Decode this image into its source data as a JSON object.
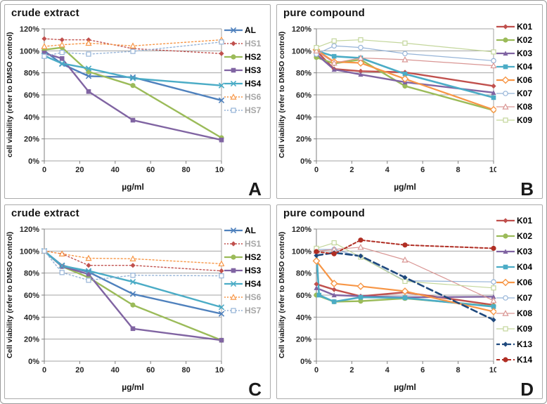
{
  "figure": {
    "background": "#FFFFFF",
    "panel_border_color": "#ABABAB",
    "gridline_color": "#A3A3A3",
    "axis_color": "#7F7F7F",
    "tick_label_color": "#262626",
    "legend_gray_label_color": "#A6A6A6"
  },
  "chart_data": [
    {
      "id": "A",
      "type": "line",
      "title": "crude extract",
      "ylabel": "cell viability (refer to DMSO control)",
      "xlabel": "µg/ml",
      "letter": "A",
      "x": [
        0,
        10,
        25,
        50,
        100
      ],
      "xticks": [
        0,
        20,
        40,
        60,
        80,
        100
      ],
      "xlim": [
        0,
        100
      ],
      "ylim_pct": [
        0,
        120
      ],
      "ytick_labels": [
        "0%",
        "20%",
        "40%",
        "60%",
        "80%",
        "100%",
        "120%"
      ],
      "grid": "horizontal",
      "legend_position": "right",
      "series": [
        {
          "name": "AL",
          "color": "#4F81BD",
          "line": "solid",
          "width": 2.4,
          "marker": "x",
          "label_color": "#000000",
          "values": [
            100,
            88,
            77,
            76,
            55
          ]
        },
        {
          "name": "HS1",
          "color": "#C0504D",
          "line": "dotted",
          "width": 1.4,
          "marker": "diamond-filled",
          "label_color": "#A6A6A6",
          "values": [
            111,
            110,
            110,
            102,
            97.5
          ]
        },
        {
          "name": "HS2",
          "color": "#9BBB59",
          "line": "solid",
          "width": 2.4,
          "marker": "circle-filled",
          "label_color": "#000000",
          "values": [
            101,
            103,
            81,
            68.5,
            21
          ]
        },
        {
          "name": "HS3",
          "color": "#8064A2",
          "line": "solid",
          "width": 2.4,
          "marker": "square-filled",
          "label_color": "#000000",
          "values": [
            98,
            93,
            63,
            37,
            19
          ]
        },
        {
          "name": "HS4",
          "color": "#4BACC6",
          "line": "solid",
          "width": 2.4,
          "marker": "x",
          "label_color": "#000000",
          "values": [
            95.5,
            88.5,
            84,
            75,
            68.5
          ]
        },
        {
          "name": "HS6",
          "color": "#F79646",
          "line": "dotted",
          "width": 1.4,
          "marker": "triangle-open",
          "label_color": "#A6A6A6",
          "values": [
            104,
            105.5,
            107,
            104.5,
            110
          ]
        },
        {
          "name": "HS7",
          "color": "#95B3D7",
          "line": "dotted",
          "width": 1.4,
          "marker": "square-open",
          "label_color": "#A6A6A6",
          "values": [
            95,
            98.5,
            97,
            99.5,
            108
          ]
        }
      ]
    },
    {
      "id": "B",
      "type": "line",
      "title": "pure compound",
      "ylabel": "Cell viability (refer to DMSO control)",
      "xlabel": "µg/ml",
      "letter": "B",
      "x": [
        0,
        1,
        2.5,
        5,
        10
      ],
      "xticks": [
        0,
        2,
        4,
        6,
        8,
        10
      ],
      "xlim": [
        0,
        10
      ],
      "ylim_pct": [
        0,
        120
      ],
      "ytick_labels": [
        "0%",
        "20%",
        "40%",
        "60%",
        "80%",
        "100%",
        "120%"
      ],
      "grid": "horizontal",
      "legend_position": "right",
      "series": [
        {
          "name": "K01",
          "color": "#C0504D",
          "line": "solid",
          "width": 2.4,
          "marker": "diamond-filled",
          "label_color": "#000000",
          "values": [
            100,
            83.5,
            81.5,
            80.5,
            68
          ]
        },
        {
          "name": "K02",
          "color": "#9BBB59",
          "line": "solid",
          "width": 2.4,
          "marker": "circle-filled",
          "label_color": "#000000",
          "values": [
            94,
            88.5,
            92,
            68,
            46
          ]
        },
        {
          "name": "K03",
          "color": "#8064A2",
          "line": "solid",
          "width": 2.4,
          "marker": "triangle-filled",
          "label_color": "#000000",
          "values": [
            97,
            83,
            78.5,
            71.5,
            62
          ]
        },
        {
          "name": "K04",
          "color": "#4BACC6",
          "line": "solid",
          "width": 2.6,
          "marker": "square-filled",
          "label_color": "#000000",
          "values": [
            100,
            95,
            93.5,
            79,
            57.5
          ]
        },
        {
          "name": "K06",
          "color": "#F79646",
          "line": "solid",
          "width": 2.2,
          "marker": "diamond-open",
          "label_color": "#000000",
          "values": [
            101,
            90,
            89,
            74.5,
            46.5
          ]
        },
        {
          "name": "K07",
          "color": "#95B3D7",
          "line": "solid",
          "width": 1.2,
          "marker": "circle-open",
          "label_color": "#000000",
          "values": [
            97,
            104.5,
            103,
            97.5,
            91
          ]
        },
        {
          "name": "K08",
          "color": "#D99694",
          "line": "solid",
          "width": 1.2,
          "marker": "triangle-open",
          "label_color": "#000000",
          "values": [
            100,
            89,
            93.5,
            92,
            86.5
          ]
        },
        {
          "name": "K09",
          "color": "#C3D69B",
          "line": "solid",
          "width": 1.2,
          "marker": "square-open",
          "label_color": "#000000",
          "values": [
            103,
            109,
            110,
            107,
            99
          ]
        }
      ]
    },
    {
      "id": "C",
      "type": "line",
      "title": "crude extract",
      "ylabel": "Cell viability (refer to DMSO control)",
      "xlabel": "µg/ml",
      "letter": "C",
      "x": [
        0,
        10,
        25,
        50,
        100
      ],
      "xticks": [
        0,
        20,
        40,
        60,
        80,
        100
      ],
      "xlim": [
        0,
        100
      ],
      "ylim_pct": [
        0,
        120
      ],
      "ytick_labels": [
        "0%",
        "20%",
        "40%",
        "60%",
        "80%",
        "100%",
        "120%"
      ],
      "grid": "horizontal",
      "legend_position": "right",
      "series": [
        {
          "name": "AL",
          "color": "#4F81BD",
          "line": "solid",
          "width": 2.4,
          "marker": "x",
          "label_color": "#000000",
          "values": [
            100,
            87,
            81,
            61,
            43
          ]
        },
        {
          "name": "HS1",
          "color": "#C0504D",
          "line": "dotted",
          "width": 1.4,
          "marker": "diamond-filled",
          "label_color": "#A6A6A6",
          "values": [
            100,
            97.5,
            87,
            87,
            82
          ]
        },
        {
          "name": "HS2",
          "color": "#9BBB59",
          "line": "solid",
          "width": 2.4,
          "marker": "circle-filled",
          "label_color": "#000000",
          "values": [
            100,
            86,
            76,
            51,
            19
          ]
        },
        {
          "name": "HS3",
          "color": "#8064A2",
          "line": "solid",
          "width": 2.4,
          "marker": "square-filled",
          "label_color": "#000000",
          "values": [
            100,
            86,
            79,
            29.5,
            19
          ]
        },
        {
          "name": "HS4",
          "color": "#4BACC6",
          "line": "solid",
          "width": 2.4,
          "marker": "x",
          "label_color": "#000000",
          "values": [
            100,
            86.5,
            82,
            72,
            49
          ]
        },
        {
          "name": "HS6",
          "color": "#F79646",
          "line": "dotted",
          "width": 1.4,
          "marker": "triangle-open",
          "label_color": "#A6A6A6",
          "values": [
            100,
            97.5,
            93.5,
            93,
            88.5
          ]
        },
        {
          "name": "HS7",
          "color": "#95B3D7",
          "line": "dotted",
          "width": 1.4,
          "marker": "square-open",
          "label_color": "#A6A6A6",
          "values": [
            100,
            80.5,
            73.5,
            78,
            77.5
          ]
        }
      ]
    },
    {
      "id": "D",
      "type": "line",
      "title": "pure compound",
      "ylabel": "Cell viability (refer to DMSO control)",
      "xlabel": "µg/ml",
      "letter": "D",
      "x": [
        0,
        1,
        2.5,
        5,
        10
      ],
      "xticks": [
        0,
        2,
        4,
        6,
        8,
        10
      ],
      "xlim": [
        0,
        10
      ],
      "ylim_pct": [
        0,
        120
      ],
      "ytick_labels": [
        "0%",
        "20%",
        "40%",
        "60%",
        "80%",
        "100%",
        "120%"
      ],
      "grid": "horizontal",
      "legend_position": "right",
      "series": [
        {
          "name": "K01",
          "color": "#C0504D",
          "line": "solid",
          "width": 2.4,
          "marker": "diamond-filled",
          "label_color": "#000000",
          "values": [
            70,
            65,
            59,
            62.5,
            51
          ]
        },
        {
          "name": "K02",
          "color": "#9BBB59",
          "line": "solid",
          "width": 2.4,
          "marker": "circle-filled",
          "label_color": "#000000",
          "values": [
            60,
            54,
            54.5,
            57,
            50
          ]
        },
        {
          "name": "K03",
          "color": "#8064A2",
          "line": "solid",
          "width": 2.4,
          "marker": "triangle-filled",
          "label_color": "#000000",
          "values": [
            66.5,
            60,
            59,
            58,
            58.5
          ]
        },
        {
          "name": "K04",
          "color": "#4BACC6",
          "line": "solid",
          "width": 2.6,
          "marker": "square-filled",
          "label_color": "#000000",
          "x": [
            0,
            0.15,
            1,
            2.5,
            5,
            10
          ],
          "values": [
            100,
            60,
            54,
            58,
            57.5,
            49.5
          ]
        },
        {
          "name": "K06",
          "color": "#F79646",
          "line": "solid",
          "width": 2.2,
          "marker": "diamond-open",
          "label_color": "#000000",
          "values": [
            91,
            70.5,
            68,
            63.5,
            45
          ]
        },
        {
          "name": "K07",
          "color": "#95B3D7",
          "line": "solid",
          "width": 1.2,
          "marker": "circle-open",
          "label_color": "#000000",
          "values": [
            101.5,
            101.5,
            95,
            73,
            72
          ]
        },
        {
          "name": "K08",
          "color": "#D99694",
          "line": "solid",
          "width": 1.2,
          "marker": "triangle-open",
          "label_color": "#000000",
          "values": [
            100,
            101.5,
            103.5,
            92,
            55
          ]
        },
        {
          "name": "K09",
          "color": "#C3D69B",
          "line": "solid",
          "width": 1.2,
          "marker": "square-open",
          "label_color": "#000000",
          "values": [
            102.5,
            107.5,
            94.5,
            72.5,
            66.5
          ]
        },
        {
          "name": "K13",
          "color": "#1F497D",
          "line": "dashed",
          "width": 2.6,
          "marker": "diamond-filled",
          "label_color": "#000000",
          "values": [
            96,
            98.5,
            95.5,
            76,
            37.5
          ]
        },
        {
          "name": "K14",
          "color": "#B02E24",
          "line": "dash-short",
          "width": 2.0,
          "marker": "circle-filled",
          "label_color": "#000000",
          "values": [
            99.5,
            97.5,
            110,
            105.5,
            102.5
          ]
        }
      ]
    }
  ]
}
